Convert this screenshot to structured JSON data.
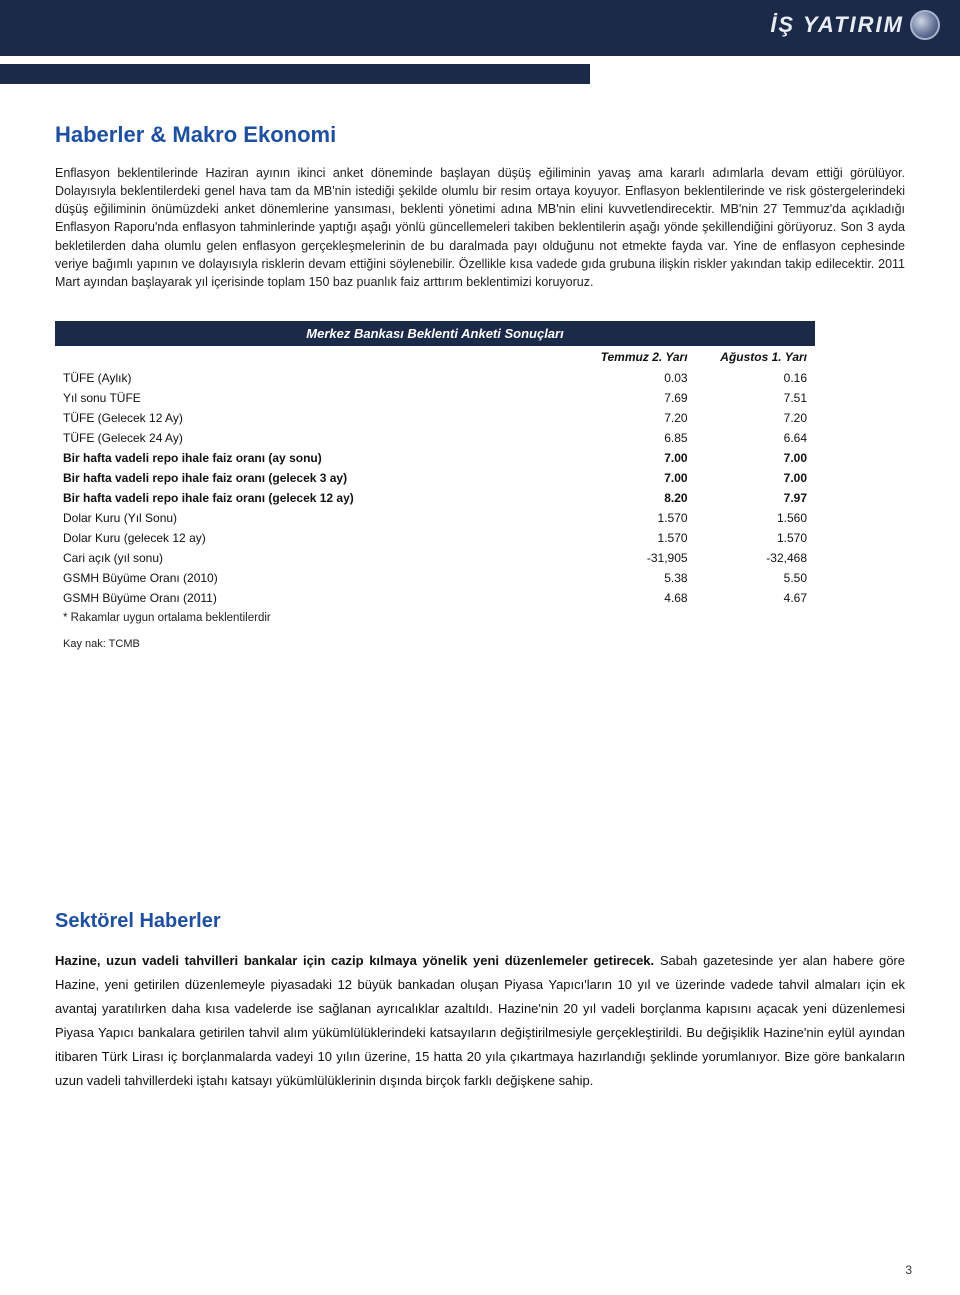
{
  "brand": {
    "text": "İŞ YATIRIM"
  },
  "section1": {
    "title": "Haberler & Makro Ekonomi",
    "body": "Enflasyon beklentilerinde Haziran ayının ikinci anket döneminde başlayan düşüş eğiliminin yavaş ama kararlı adımlarla devam ettiği görülüyor. Dolayısıyla beklentilerdeki genel hava tam da MB'nin istediği şekilde olumlu bir resim ortaya koyuyor. Enflasyon beklentilerinde ve risk göstergelerindeki düşüş eğiliminin önümüzdeki anket dönemlerine yansıması, beklenti yönetimi adına MB'nin elini kuvvetlendirecektir. MB'nin 27 Temmuz'da açıkladığı Enflasyon Raporu'nda enflasyon tahminlerinde yaptığı aşağı yönlü güncellemeleri takiben beklentilerin aşağı yönde şekillendiğini görüyoruz. Son 3 ayda bekletilerden daha olumlu gelen enflasyon gerçekleşmelerinin de bu daralmada payı olduğunu not etmekte fayda var. Yine de enflasyon cephesinde veriye bağımlı yapının ve dolayısıyla risklerin devam ettiğini söylenebilir. Özellikle kısa vadede gıda grubuna ilişkin riskler yakından takip edilecektir. 2011 Mart ayından başlayarak yıl içerisinde toplam 150 baz puanlık faiz arttırım beklentimizi koruyoruz."
  },
  "table": {
    "title": "Merkez Bankası Beklenti Anketi Sonuçları",
    "col1": "Temmuz 2. Yarı",
    "col2": "Ağustos 1. Yarı",
    "rows": [
      {
        "label": "TÜFE (Aylık)",
        "v1": "0.03",
        "v2": "0.16",
        "bold": false
      },
      {
        "label": "Yıl sonu TÜFE",
        "v1": "7.69",
        "v2": "7.51",
        "bold": false
      },
      {
        "label": "TÜFE (Gelecek 12 Ay)",
        "v1": "7.20",
        "v2": "7.20",
        "bold": false
      },
      {
        "label": "TÜFE (Gelecek 24 Ay)",
        "v1": "6.85",
        "v2": "6.64",
        "bold": false
      },
      {
        "label": "Bir hafta vadeli repo ihale faiz oranı (ay sonu)",
        "v1": "7.00",
        "v2": "7.00",
        "bold": true
      },
      {
        "label": "Bir hafta vadeli repo ihale faiz oranı (gelecek 3 ay)",
        "v1": "7.00",
        "v2": "7.00",
        "bold": true
      },
      {
        "label": "Bir hafta vadeli repo ihale faiz oranı (gelecek 12 ay)",
        "v1": "8.20",
        "v2": "7.97",
        "bold": true
      },
      {
        "label": "Dolar Kuru (Yıl Sonu)",
        "v1": "1.570",
        "v2": "1.560",
        "bold": false
      },
      {
        "label": "Dolar Kuru (gelecek 12 ay)",
        "v1": "1.570",
        "v2": "1.570",
        "bold": false
      },
      {
        "label": "Cari açık (yıl sonu)",
        "v1": "-31,905",
        "v2": "-32,468",
        "bold": false
      },
      {
        "label": "GSMH Büyüme Oranı (2010)",
        "v1": "5.38",
        "v2": "5.50",
        "bold": false
      },
      {
        "label": "GSMH Büyüme Oranı (2011)",
        "v1": "4.68",
        "v2": "4.67",
        "bold": false
      }
    ],
    "footnote": "* Rakamlar uygun ortalama beklentilerdir",
    "source": "Kay nak: TCMB"
  },
  "section2": {
    "title": "Sektörel Haberler",
    "lead": "Hazine, uzun vadeli tahvilleri bankalar için cazip kılmaya yönelik yeni düzenlemeler getirecek.",
    "body": " Sabah gazetesinde yer alan habere göre Hazine, yeni getirilen düzenlemeyle piyasadaki 12 büyük bankadan oluşan Piyasa Yapıcı'ların 10 yıl ve üzerinde vadede tahvil almaları için ek avantaj yaratılırken daha kısa vadelerde ise sağlanan ayrıcalıklar azaltıldı. Hazine'nin 20 yıl vadeli borçlanma kapısını açacak yeni düzenlemesi Piyasa Yapıcı bankalara getirilen tahvil alım yükümlülüklerindeki katsayıların değiştirilmesiyle gerçekleştirildi. Bu değişiklik Hazine'nin eylül ayından itibaren Türk Lirası iç borçlanmalarda vadeyi 10 yılın üzerine, 15 hatta 20 yıla çıkartmaya hazırlandığı şeklinde yorumlanıyor. Bize göre bankaların uzun vadeli tahvillerdeki iştahı katsayı yükümlülüklerinin dışında birçok farklı değişkene sahip."
  },
  "page_number": "3",
  "colors": {
    "brand_blue": "#1e4fa0",
    "navy": "#1c2a4a",
    "text": "#222222",
    "white": "#ffffff"
  }
}
